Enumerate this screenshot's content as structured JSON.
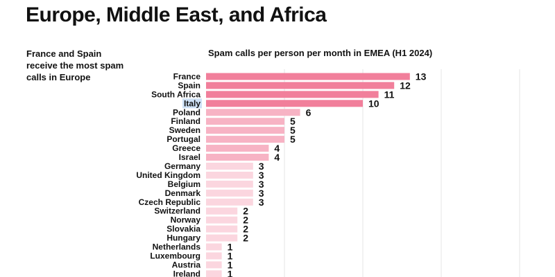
{
  "page": {
    "title": "Europe, Middle East, and Africa",
    "note": "France and Spain receive the most spam calls in Europe"
  },
  "chart_data": {
    "type": "bar",
    "orientation": "horizontal",
    "title": "Spam calls per person per month in EMEA (H1 2024)",
    "xlabel": "",
    "ylabel": "",
    "xlim": [
      0,
      20
    ],
    "grid": true,
    "highlighted_category": "Italy",
    "colors": {
      "dark": "#f17f9b",
      "mid": "#f7b3c4",
      "light": "#fbd6df",
      "grid": "#e6e6e6",
      "highlight": "#cfe2f7"
    },
    "categories": [
      "France",
      "Spain",
      "South Africa",
      "Italy",
      "Poland",
      "Finland",
      "Sweden",
      "Portugal",
      "Greece",
      "Israel",
      "Germany",
      "United Kingdom",
      "Belgium",
      "Denmark",
      "Czech Republic",
      "Switzerland",
      "Norway",
      "Slovakia",
      "Hungary",
      "Netherlands",
      "Luxembourg",
      "Austria",
      "Ireland"
    ],
    "values": [
      13,
      12,
      11,
      10,
      6,
      5,
      5,
      5,
      4,
      4,
      3,
      3,
      3,
      3,
      3,
      2,
      2,
      2,
      2,
      1,
      1,
      1,
      1
    ]
  }
}
